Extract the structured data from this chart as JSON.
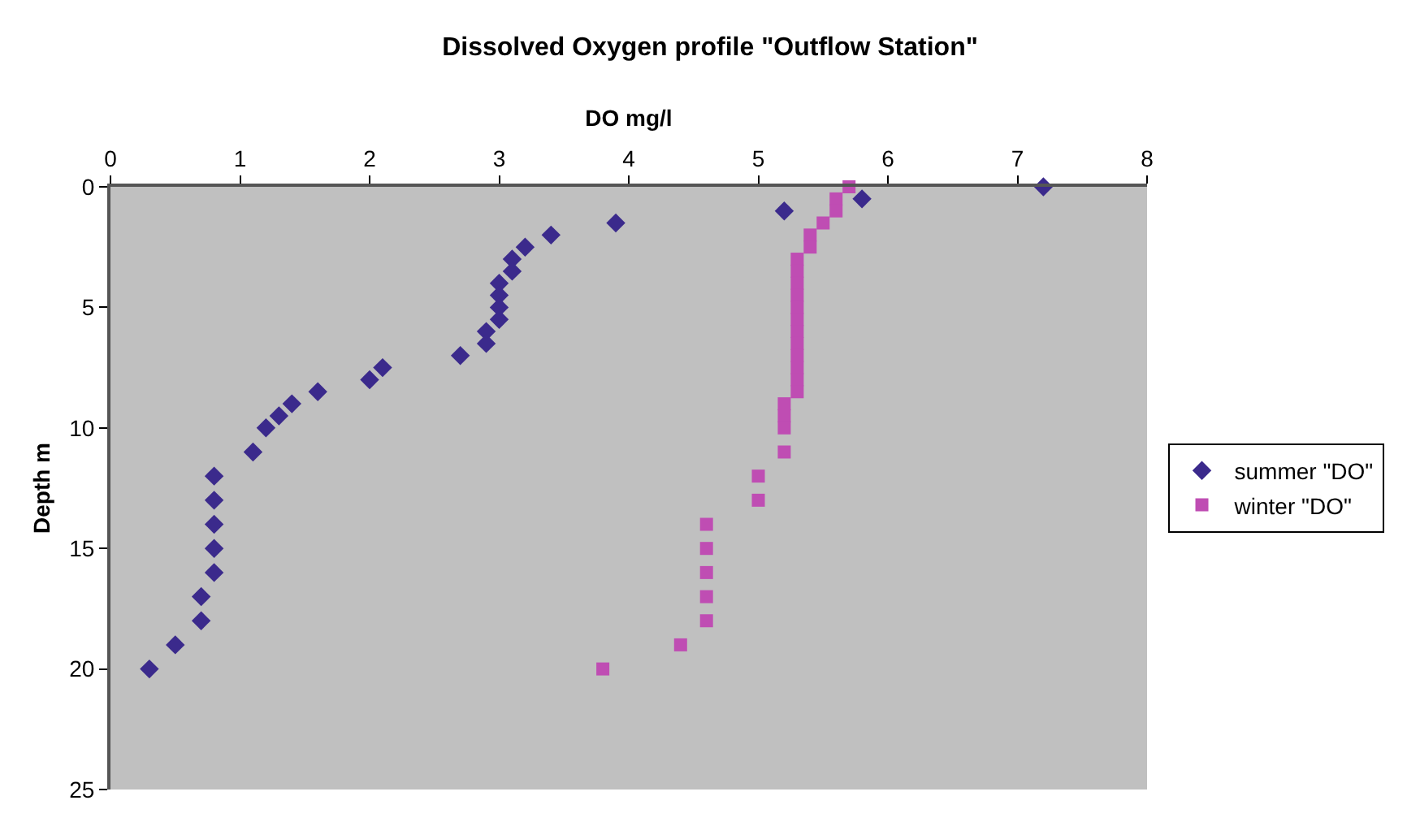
{
  "chart_data": {
    "type": "scatter",
    "title": "Dissolved Oxygen profile \"Outflow Station\"",
    "xlabel": "DO mg/l",
    "ylabel": "Depth m",
    "xlim": [
      0,
      8
    ],
    "xticks": [
      0,
      1,
      2,
      3,
      4,
      5,
      6,
      7,
      8
    ],
    "ylim": [
      25,
      0
    ],
    "yticks": [
      0,
      5,
      10,
      15,
      20,
      25
    ],
    "grid": false,
    "legend": "right",
    "series": [
      {
        "name": "summer \"DO\"",
        "color": "#3b2a8c",
        "marker": "diamond",
        "x": [
          7.2,
          5.8,
          5.2,
          3.9,
          3.4,
          3.2,
          3.1,
          3.1,
          3.0,
          3.0,
          3.0,
          3.0,
          2.9,
          2.9,
          2.7,
          2.1,
          2.0,
          1.6,
          1.4,
          1.3,
          1.2,
          1.1,
          0.8,
          0.8,
          0.8,
          0.8,
          0.8,
          0.7,
          0.7,
          0.5,
          0.3
        ],
        "values": [
          0,
          0.5,
          1,
          1.5,
          2,
          2.5,
          3,
          3.5,
          4,
          4.5,
          5,
          5.5,
          6,
          6.5,
          7,
          7.5,
          8,
          8.5,
          9,
          9.5,
          10,
          11,
          12,
          13,
          14,
          15,
          16,
          17,
          18,
          19,
          20
        ]
      },
      {
        "name": "winter \"DO\"",
        "color": "#bf4db3",
        "marker": "square",
        "x": [
          5.7,
          5.6,
          5.6,
          5.5,
          5.4,
          5.4,
          5.3,
          5.3,
          5.3,
          5.3,
          5.3,
          5.3,
          5.3,
          5.3,
          5.3,
          5.3,
          5.3,
          5.3,
          5.2,
          5.2,
          5.2,
          5.2,
          5.0,
          5.0,
          4.6,
          4.6,
          4.6,
          4.6,
          4.6,
          4.4,
          3.8
        ],
        "values": [
          0,
          0.5,
          1,
          1.5,
          2,
          2.5,
          3,
          3.5,
          4,
          4.5,
          5,
          5.5,
          6,
          6.5,
          7,
          7.5,
          8,
          8.5,
          9,
          9.5,
          10,
          11,
          12,
          13,
          14,
          15,
          16,
          17,
          18,
          19,
          20
        ]
      }
    ]
  }
}
